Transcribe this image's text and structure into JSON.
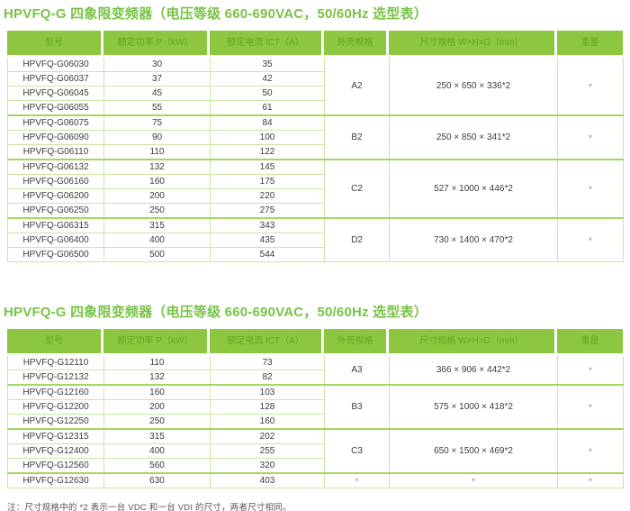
{
  "colors": {
    "title_green": "#78C346",
    "header_background": "#8DC63F",
    "header_text": "#64A527",
    "grid_line": "#C9E6A3",
    "group_separator": "#A5D563",
    "body_text": "#3C3C3C",
    "footnote_text": "#555555"
  },
  "tables": [
    {
      "title": "HPVFQ-G 四象限变频器（电压等级 660-690VAC，50/60Hz 选型表）",
      "headers": [
        "型号",
        "额定功率 P（kW）",
        "额定电流 ICT（A）",
        "外壳规格",
        "尺寸规格 W×H×D（mm）",
        "重量"
      ],
      "groups": [
        {
          "case": "A2",
          "dimensions": "250 × 650 × 336*2",
          "weight": "*",
          "rows": [
            {
              "model": "HPVFQ-G06030",
              "power": "30",
              "current": "35"
            },
            {
              "model": "HPVFQ-G06037",
              "power": "37",
              "current": "42"
            },
            {
              "model": "HPVFQ-G06045",
              "power": "45",
              "current": "50"
            },
            {
              "model": "HPVFQ-G06055",
              "power": "55",
              "current": "61"
            }
          ]
        },
        {
          "case": "B2",
          "dimensions": "250 × 850 × 341*2",
          "weight": "*",
          "rows": [
            {
              "model": "HPVFQ-G06075",
              "power": "75",
              "current": "84"
            },
            {
              "model": "HPVFQ-G06090",
              "power": "90",
              "current": "100"
            },
            {
              "model": "HPVFQ-G06110",
              "power": "110",
              "current": "122"
            }
          ]
        },
        {
          "case": "C2",
          "dimensions": "527 × 1000 × 446*2",
          "weight": "*",
          "rows": [
            {
              "model": "HPVFQ-G06132",
              "power": "132",
              "current": "145"
            },
            {
              "model": "HPVFQ-G06160",
              "power": "160",
              "current": "175"
            },
            {
              "model": "HPVFQ-G06200",
              "power": "200",
              "current": "220"
            },
            {
              "model": "HPVFQ-G06250",
              "power": "250",
              "current": "275"
            }
          ]
        },
        {
          "case": "D2",
          "dimensions": "730 × 1400 × 470*2",
          "weight": "*",
          "rows": [
            {
              "model": "HPVFQ-G06315",
              "power": "315",
              "current": "343"
            },
            {
              "model": "HPVFQ-G06400",
              "power": "400",
              "current": "435"
            },
            {
              "model": "HPVFQ-G06500",
              "power": "500",
              "current": "544"
            }
          ]
        }
      ]
    },
    {
      "title": "HPVFQ-G 四象限变频器（电压等级 660-690VAC，50/60Hz 选型表）",
      "headers": [
        "型号",
        "额定功率 P（kW）",
        "额定电流 ICT（A）",
        "外壳规格",
        "尺寸规格 W×H×D（mm）",
        "重量"
      ],
      "groups": [
        {
          "case": "A3",
          "dimensions": "366 × 906 × 442*2",
          "weight": "*",
          "rows": [
            {
              "model": "HPVFQ-G12110",
              "power": "110",
              "current": "73"
            },
            {
              "model": "HPVFQ-G12132",
              "power": "132",
              "current": "82"
            }
          ]
        },
        {
          "case": "B3",
          "dimensions": "575 × 1000 × 418*2",
          "weight": "*",
          "rows": [
            {
              "model": "HPVFQ-G12160",
              "power": "160",
              "current": "103"
            },
            {
              "model": "HPVFQ-G12200",
              "power": "200",
              "current": "128"
            },
            {
              "model": "HPVFQ-G12250",
              "power": "250",
              "current": "160"
            }
          ]
        },
        {
          "case": "C3",
          "dimensions": "650 × 1500 × 469*2",
          "weight": "*",
          "rows": [
            {
              "model": "HPVFQ-G12315",
              "power": "315",
              "current": "202"
            },
            {
              "model": "HPVFQ-G12400",
              "power": "400",
              "current": "255"
            },
            {
              "model": "HPVFQ-G12560",
              "power": "560",
              "current": "320"
            }
          ]
        },
        {
          "case": "*",
          "dimensions": "*",
          "weight": "*",
          "rows": [
            {
              "model": "HPVFQ-G12630",
              "power": "630",
              "current": "403"
            }
          ]
        }
      ]
    }
  ],
  "footnote": "注：尺寸规格中的 *2 表示一台 VDC 和一台 VDI 的尺寸，两者尺寸相同。"
}
